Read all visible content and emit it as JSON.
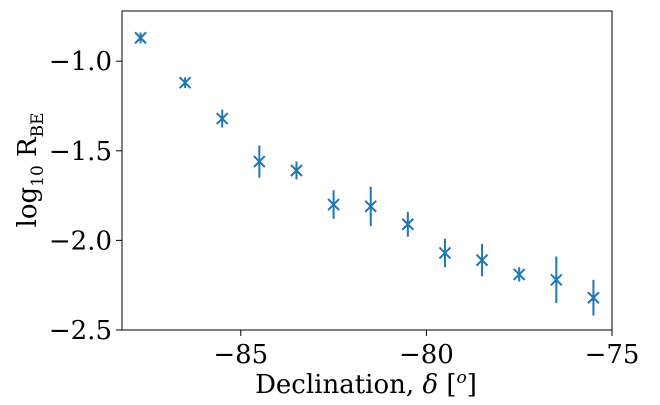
{
  "chart_data": {
    "type": "scatter",
    "title": "",
    "xlabel": "Declination, δ [o]",
    "xlabel_parts": {
      "main": "Declination, ",
      "symbol": "δ",
      "unit_open": " [",
      "unit_sup": "o",
      "unit_close": "]"
    },
    "ylabel": "log10 RBE",
    "ylabel_parts": {
      "main": "log",
      "sub": "10",
      "symbol": " R",
      "symbol_sub": "BE"
    },
    "xlim": [
      -88.2,
      -75
    ],
    "ylim": [
      -2.5,
      -0.72
    ],
    "xticks": [
      -85,
      -80,
      -75
    ],
    "xtick_labels": [
      "−85",
      "−80",
      "−75"
    ],
    "yticks": [
      -1.0,
      -1.5,
      -2.0,
      -2.5
    ],
    "ytick_labels": [
      "−1.0",
      "−1.5",
      "−2.0",
      "−2.5"
    ],
    "grid": false,
    "marker": "x",
    "color": "#1f77b4",
    "series": [
      {
        "x": [
          -87.7,
          -86.5,
          -85.5,
          -84.5,
          -83.5,
          -82.5,
          -81.5,
          -80.5,
          -79.5,
          -78.5,
          -77.5,
          -76.5,
          -75.5
        ],
        "y": [
          -0.87,
          -1.12,
          -1.32,
          -1.56,
          -1.61,
          -1.8,
          -1.81,
          -1.91,
          -2.07,
          -2.11,
          -2.19,
          -2.22,
          -2.32
        ],
        "yerr": [
          0.03,
          0.03,
          0.05,
          0.09,
          0.05,
          0.08,
          0.11,
          0.07,
          0.08,
          0.09,
          0.04,
          0.13,
          0.1
        ]
      }
    ]
  }
}
